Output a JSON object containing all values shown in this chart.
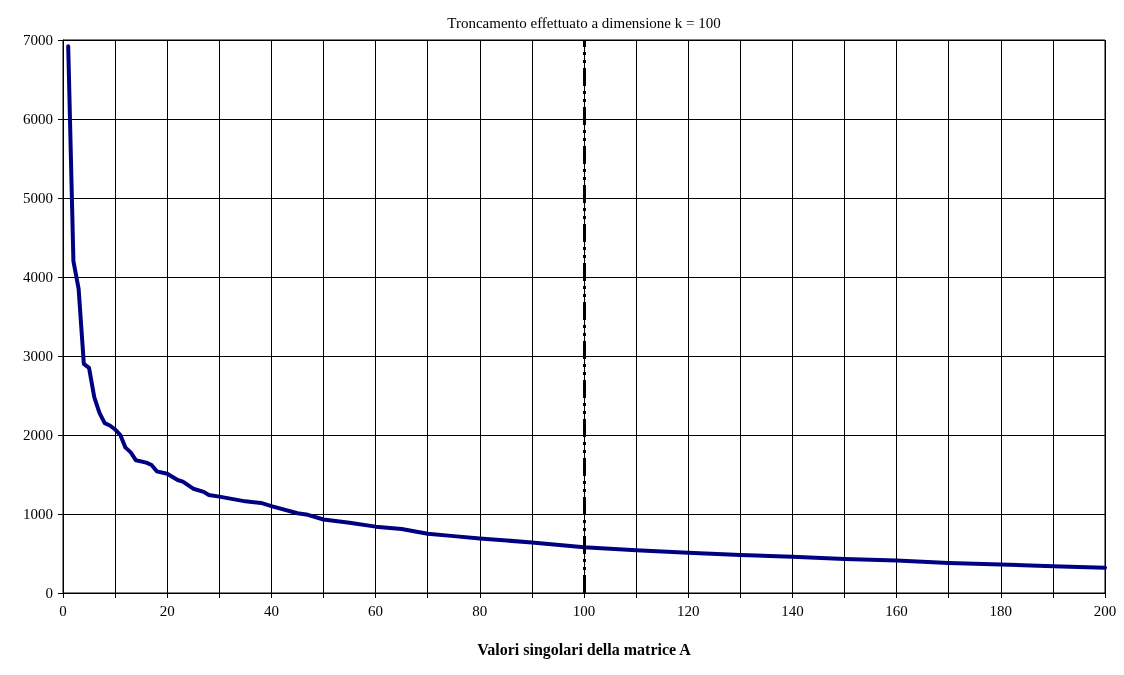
{
  "chart_data": {
    "type": "line",
    "xlabel": "Valori singolari della matrice A",
    "x": [
      1,
      2,
      3,
      4,
      5,
      6,
      7,
      8,
      9,
      10,
      11,
      12,
      13,
      14,
      16,
      17,
      18,
      20,
      22,
      23,
      25,
      27,
      28,
      30,
      35,
      38,
      40,
      45,
      47,
      50,
      55,
      60,
      65,
      70,
      75,
      80,
      90,
      100,
      110,
      120,
      130,
      140,
      150,
      160,
      170,
      180,
      190,
      200
    ],
    "series": [
      {
        "color": "#000080",
        "values": [
          6920,
          4200,
          3850,
          2900,
          2850,
          2480,
          2280,
          2150,
          2120,
          2070,
          2000,
          1840,
          1780,
          1680,
          1650,
          1620,
          1540,
          1510,
          1430,
          1410,
          1320,
          1280,
          1240,
          1220,
          1160,
          1140,
          1100,
          1010,
          990,
          930,
          890,
          840,
          810,
          750,
          720,
          690,
          640,
          580,
          540,
          510,
          480,
          460,
          430,
          410,
          380,
          360,
          340,
          320
        ]
      }
    ],
    "xlim": [
      0,
      200
    ],
    "ylim": [
      0,
      7000
    ],
    "xticks": [
      0,
      {
        "value": 10,
        "label": null
      },
      20,
      {
        "value": 30,
        "label": null
      },
      40,
      {
        "value": 50,
        "label": null
      },
      60,
      {
        "value": 70,
        "label": null
      },
      80,
      {
        "value": 90,
        "label": null
      },
      100,
      {
        "value": 110,
        "label": null
      },
      120,
      {
        "value": 130,
        "label": null
      },
      140,
      {
        "value": 150,
        "label": null
      },
      160,
      {
        "value": 170,
        "label": null
      },
      180,
      {
        "value": 190,
        "label": null
      },
      200
    ],
    "yticks": [
      0,
      1000,
      2000,
      3000,
      4000,
      5000,
      6000,
      7000
    ],
    "ref_lines": [
      {
        "axis": "x",
        "value": 100,
        "label": "Troncamento effettuato a dimensione k = 100",
        "color": "#000000",
        "line_style": "dashed"
      }
    ],
    "grid": true,
    "marker": "none",
    "line_style": "solid"
  }
}
